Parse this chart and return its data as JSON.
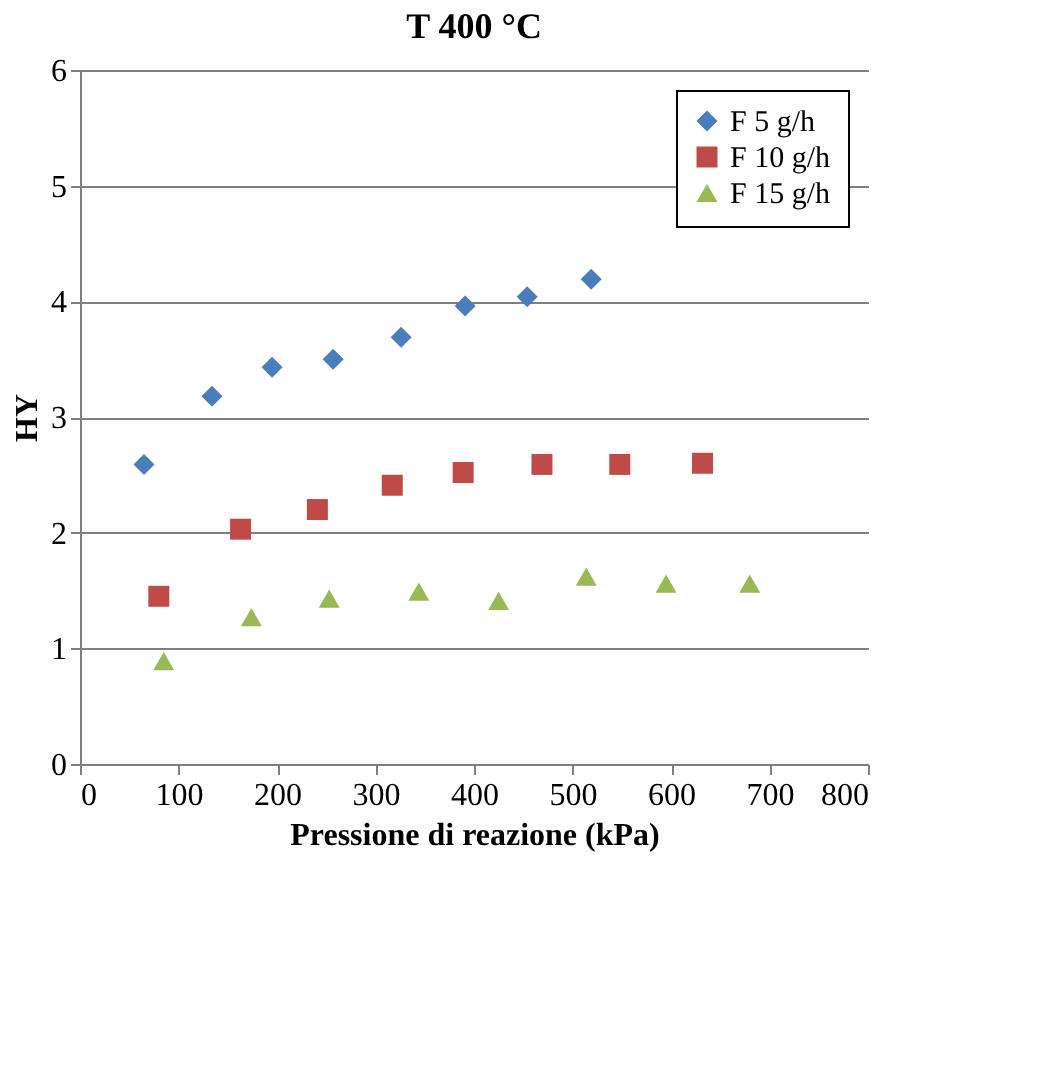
{
  "chart_data": {
    "type": "scatter",
    "title": "T 400 °C",
    "xlabel": "Pressione di reazione (kPa)",
    "ylabel": "HY",
    "xlim": [
      0,
      800
    ],
    "xticks": [
      0,
      100,
      200,
      300,
      400,
      500,
      600,
      700,
      800
    ],
    "ylim": [
      0,
      6
    ],
    "yticks": [
      0,
      1,
      2,
      3,
      4,
      5,
      6
    ],
    "grid": "y",
    "legend": "top right",
    "series": [
      {
        "name": "F 5 g/h",
        "color": "#4a7ebb",
        "marker": "diamond",
        "x": [
          65,
          134,
          195,
          257,
          326,
          391,
          454,
          519
        ],
        "values": [
          2.59,
          3.18,
          3.43,
          3.5,
          3.69,
          3.96,
          4.04,
          4.19
        ]
      },
      {
        "name": "F 10 g/h",
        "color": "#be4b48",
        "marker": "square",
        "x": [
          80,
          163,
          241,
          317,
          389,
          469,
          548,
          632
        ],
        "values": [
          1.45,
          2.03,
          2.2,
          2.41,
          2.52,
          2.59,
          2.59,
          2.6
        ]
      },
      {
        "name": "F 15 g/h",
        "color": "#98b954",
        "marker": "triangle",
        "x": [
          85,
          174,
          253,
          344,
          425,
          514,
          595,
          680
        ],
        "values": [
          0.89,
          1.27,
          1.43,
          1.49,
          1.41,
          1.62,
          1.56,
          1.56
        ]
      }
    ]
  }
}
